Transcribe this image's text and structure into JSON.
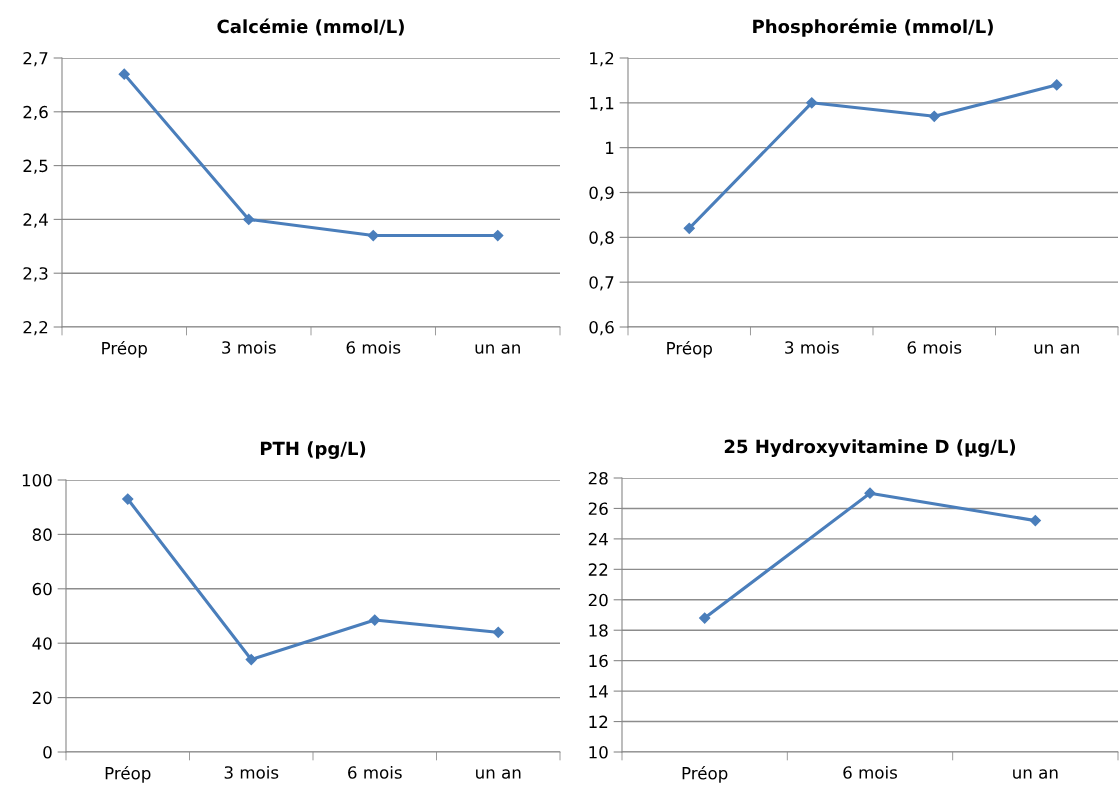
{
  "chart_data": [
    {
      "type": "line",
      "title": "Calcémie (mmol/L)",
      "categories": [
        "Préop",
        "3 mois",
        "6 mois",
        "un an"
      ],
      "series": [
        {
          "color": "#4a7ebb",
          "values": [
            2.67,
            2.4,
            2.37,
            2.37
          ]
        }
      ],
      "ylim": [
        2.2,
        2.7
      ],
      "yticks": [
        {
          "value": 2.2,
          "label": "2,2"
        },
        {
          "value": 2.3,
          "label": "2,3"
        },
        {
          "value": 2.4,
          "label": "2,4"
        },
        {
          "value": 2.5,
          "label": "2,5"
        },
        {
          "value": 2.6,
          "label": "2,6"
        },
        {
          "value": 2.7,
          "label": "2,7"
        }
      ],
      "grid": "y",
      "marker": "diamond",
      "line_style": "solid"
    },
    {
      "type": "line",
      "title": "Phosphorémie (mmol/L)",
      "categories": [
        "Préop",
        "3 mois",
        "6 mois",
        "un an"
      ],
      "series": [
        {
          "color": "#4a7ebb",
          "values": [
            0.82,
            1.1,
            1.07,
            1.14
          ]
        }
      ],
      "ylim": [
        0.6,
        1.2
      ],
      "yticks": [
        {
          "value": 0.6,
          "label": "0,6"
        },
        {
          "value": 0.7,
          "label": "0,7"
        },
        {
          "value": 0.8,
          "label": "0,8"
        },
        {
          "value": 0.9,
          "label": "0,9"
        },
        1,
        {
          "value": 1.1,
          "label": "1,1"
        },
        {
          "value": 1.2,
          "label": "1,2"
        }
      ],
      "grid": "y",
      "marker": "diamond",
      "line_style": "solid"
    },
    {
      "type": "line",
      "title": "PTH (pg/L)",
      "categories": [
        "Préop",
        "3 mois",
        "6 mois",
        "un an"
      ],
      "series": [
        {
          "color": "#4a7ebb",
          "values": [
            93,
            34,
            48.5,
            44
          ]
        }
      ],
      "ylim": [
        0,
        100
      ],
      "yticks": [
        0,
        20,
        40,
        60,
        80,
        100
      ],
      "grid": "y",
      "marker": "diamond",
      "line_style": "solid"
    },
    {
      "type": "line",
      "title": "25 Hydroxyvitamine D (µg/L)",
      "categories": [
        "Préop",
        "6 mois",
        "un an"
      ],
      "series": [
        {
          "color": "#4a7ebb",
          "values": [
            18.8,
            27.0,
            25.2
          ]
        }
      ],
      "ylim": [
        10,
        28
      ],
      "yticks": [
        10,
        12,
        14,
        16,
        18,
        20,
        22,
        24,
        26,
        28
      ],
      "grid": "y",
      "marker": "diamond",
      "line_style": "solid"
    }
  ]
}
